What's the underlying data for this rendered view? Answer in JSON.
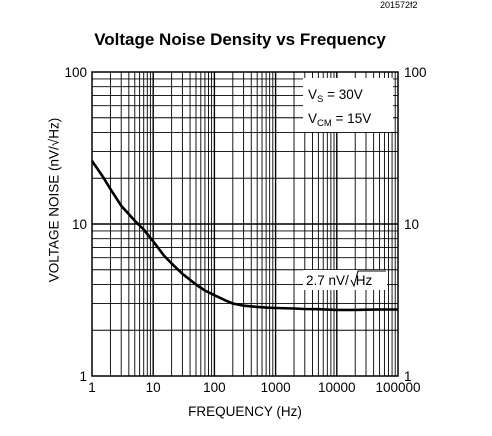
{
  "figure_id": "201572f2",
  "chart_data": {
    "type": "line",
    "title": "Voltage Noise Density vs Frequency",
    "xlabel": "FREQUENCY (Hz)",
    "ylabel": "VOLTAGE NOISE (nV/√Hz)",
    "x_scale": "log",
    "y_scale": "log",
    "xlim": [
      1,
      100000
    ],
    "ylim": [
      1,
      100
    ],
    "x_ticks": [
      "1",
      "10",
      "100",
      "1000",
      "10000",
      "100000"
    ],
    "y_ticks": [
      "1",
      "10",
      "100"
    ],
    "y_ticks_right": [
      "1",
      "10",
      "100"
    ],
    "grid": true,
    "legend": {
      "vs_label": "V",
      "vs_sub": "S",
      "vs_value": " = 30V",
      "vcm_label": "V",
      "vcm_sub": "CM",
      "vcm_value": " = 15V"
    },
    "annotation": {
      "text": "2.7 nV/√Hz",
      "prefix": "2.7 nV/",
      "radicand": "Hz"
    },
    "series": [
      {
        "x": [
          1,
          1.5,
          2,
          3,
          5,
          7,
          10,
          15,
          20,
          30,
          50,
          70,
          100,
          150,
          200,
          300,
          500,
          700,
          1000,
          2000,
          3000,
          5000,
          10000,
          20000,
          30000,
          50000,
          100000
        ],
        "values": [
          26,
          20.5,
          17,
          13.2,
          10.5,
          9.2,
          7.7,
          6.2,
          5.5,
          4.7,
          4.0,
          3.65,
          3.4,
          3.15,
          3.0,
          2.9,
          2.85,
          2.82,
          2.8,
          2.78,
          2.76,
          2.75,
          2.72,
          2.72,
          2.73,
          2.74,
          2.74
        ]
      }
    ]
  }
}
